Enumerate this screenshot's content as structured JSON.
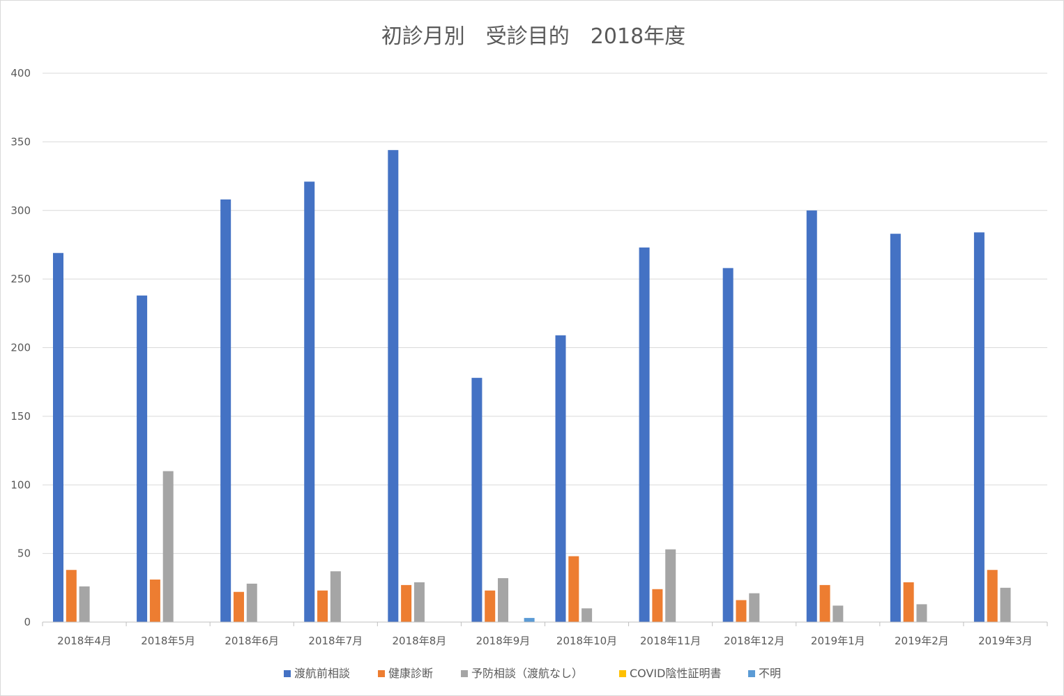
{
  "chart_data": {
    "type": "bar",
    "title": "初診月別　受診目的　2018年度",
    "xlabel": "",
    "ylabel": "",
    "ylim": [
      0,
      400
    ],
    "yticks": [
      0,
      50,
      100,
      150,
      200,
      250,
      300,
      350,
      400
    ],
    "grid": true,
    "legend_position": "bottom",
    "categories": [
      "2018年4月",
      "2018年5月",
      "2018年6月",
      "2018年7月",
      "2018年8月",
      "2018年9月",
      "2018年10月",
      "2018年11月",
      "2018年12月",
      "2019年1月",
      "2019年2月",
      "2019年3月"
    ],
    "series": [
      {
        "name": "渡航前相談",
        "color": "#4472c4",
        "values": [
          269,
          238,
          308,
          321,
          344,
          178,
          209,
          273,
          258,
          300,
          283,
          284
        ]
      },
      {
        "name": "健康診断",
        "color": "#ed7d31",
        "values": [
          38,
          31,
          22,
          23,
          27,
          23,
          48,
          24,
          16,
          27,
          29,
          38
        ]
      },
      {
        "name": "予防相談（渡航なし）",
        "color": "#a5a5a5",
        "values": [
          26,
          110,
          28,
          37,
          29,
          32,
          10,
          53,
          21,
          12,
          13,
          25
        ]
      },
      {
        "name": "COVID陰性証明書",
        "color": "#ffc000",
        "values": [
          0,
          0,
          0,
          0,
          0,
          0,
          0,
          0,
          0,
          0,
          0,
          0
        ]
      },
      {
        "name": "不明",
        "color": "#5b9bd5",
        "values": [
          0,
          0,
          0,
          0,
          0,
          3,
          0,
          0,
          0,
          0,
          0,
          0
        ]
      }
    ]
  }
}
